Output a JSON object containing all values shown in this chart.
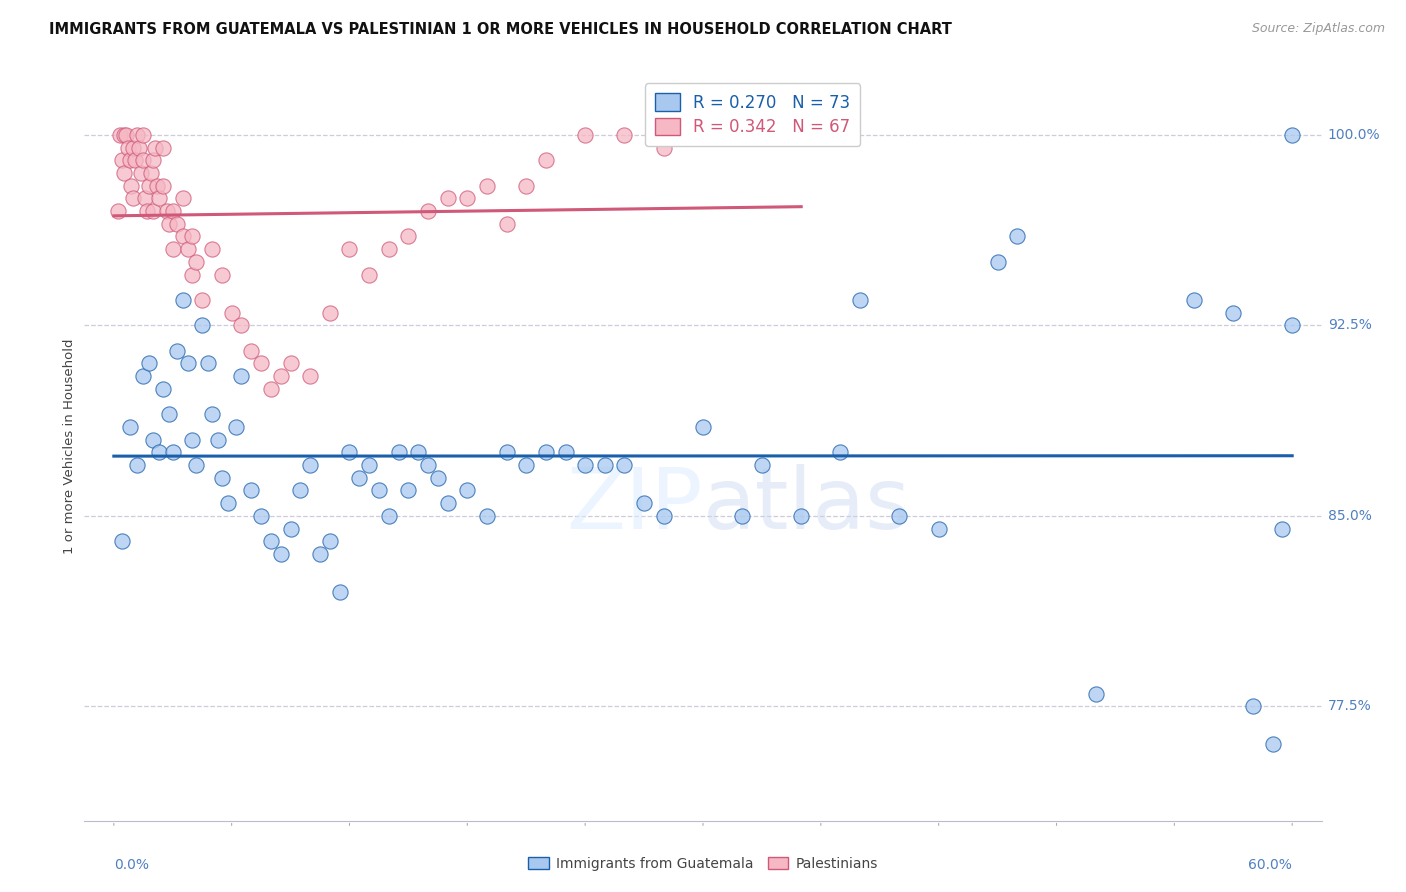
{
  "title": "IMMIGRANTS FROM GUATEMALA VS PALESTINIAN 1 OR MORE VEHICLES IN HOUSEHOLD CORRELATION CHART",
  "source": "Source: ZipAtlas.com",
  "ylabel": "1 or more Vehicles in Household",
  "legend_blue_R": "0.270",
  "legend_blue_N": "73",
  "legend_pink_R": "0.342",
  "legend_pink_N": "67",
  "blue_color": "#a8c8f0",
  "pink_color": "#f5b8c4",
  "blue_line_color": "#1a5faa",
  "pink_line_color": "#d05878",
  "axis_label_color": "#5080c0",
  "grid_color": "#ccccdd",
  "xlim": [
    0.0,
    60.0
  ],
  "ylim": [
    73.0,
    102.5
  ],
  "ytick_positions": [
    77.5,
    85.0,
    92.5,
    100.0
  ],
  "ytick_labels": [
    "77.5%",
    "85.0%",
    "92.5%",
    "100.0%"
  ],
  "blue_scatter_x": [
    0.4,
    0.8,
    1.2,
    1.5,
    1.8,
    2.0,
    2.3,
    2.5,
    2.8,
    3.0,
    3.2,
    3.5,
    3.8,
    4.0,
    4.2,
    4.5,
    4.8,
    5.0,
    5.3,
    5.5,
    5.8,
    6.2,
    6.5,
    7.0,
    7.5,
    8.0,
    8.5,
    9.0,
    9.5,
    10.0,
    10.5,
    11.0,
    11.5,
    12.0,
    12.5,
    13.0,
    13.5,
    14.0,
    14.5,
    15.0,
    15.5,
    16.0,
    16.5,
    17.0,
    18.0,
    19.0,
    20.0,
    21.0,
    22.0,
    23.0,
    24.0,
    25.0,
    26.0,
    27.0,
    28.0,
    30.0,
    32.0,
    33.0,
    35.0,
    37.0,
    38.0,
    40.0,
    42.0,
    45.0,
    46.0,
    50.0,
    55.0,
    57.0,
    58.0,
    59.0,
    59.5,
    60.0,
    60.0
  ],
  "blue_scatter_y": [
    84.0,
    88.5,
    87.0,
    90.5,
    91.0,
    88.0,
    87.5,
    90.0,
    89.0,
    87.5,
    91.5,
    93.5,
    91.0,
    88.0,
    87.0,
    92.5,
    91.0,
    89.0,
    88.0,
    86.5,
    85.5,
    88.5,
    90.5,
    86.0,
    85.0,
    84.0,
    83.5,
    84.5,
    86.0,
    87.0,
    83.5,
    84.0,
    82.0,
    87.5,
    86.5,
    87.0,
    86.0,
    85.0,
    87.5,
    86.0,
    87.5,
    87.0,
    86.5,
    85.5,
    86.0,
    85.0,
    87.5,
    87.0,
    87.5,
    87.5,
    87.0,
    87.0,
    87.0,
    85.5,
    85.0,
    88.5,
    85.0,
    87.0,
    85.0,
    87.5,
    93.5,
    85.0,
    84.5,
    95.0,
    96.0,
    78.0,
    93.5,
    93.0,
    77.5,
    76.0,
    84.5,
    92.5,
    100.0
  ],
  "pink_scatter_x": [
    0.2,
    0.3,
    0.4,
    0.5,
    0.5,
    0.6,
    0.7,
    0.8,
    0.9,
    1.0,
    1.0,
    1.1,
    1.2,
    1.3,
    1.4,
    1.5,
    1.5,
    1.6,
    1.7,
    1.8,
    1.9,
    2.0,
    2.0,
    2.1,
    2.2,
    2.3,
    2.5,
    2.5,
    2.7,
    2.8,
    3.0,
    3.0,
    3.2,
    3.5,
    3.5,
    3.8,
    4.0,
    4.0,
    4.2,
    4.5,
    5.0,
    5.5,
    6.0,
    6.5,
    7.0,
    7.5,
    8.0,
    8.5,
    9.0,
    10.0,
    11.0,
    12.0,
    13.0,
    14.0,
    15.0,
    16.0,
    17.0,
    18.0,
    19.0,
    20.0,
    21.0,
    22.0,
    24.0,
    26.0,
    28.0,
    30.0,
    35.0
  ],
  "pink_scatter_y": [
    97.0,
    100.0,
    99.0,
    98.5,
    100.0,
    100.0,
    99.5,
    99.0,
    98.0,
    99.5,
    97.5,
    99.0,
    100.0,
    99.5,
    98.5,
    100.0,
    99.0,
    97.5,
    97.0,
    98.0,
    98.5,
    97.0,
    99.0,
    99.5,
    98.0,
    97.5,
    99.5,
    98.0,
    97.0,
    96.5,
    97.0,
    95.5,
    96.5,
    97.5,
    96.0,
    95.5,
    96.0,
    94.5,
    95.0,
    93.5,
    95.5,
    94.5,
    93.0,
    92.5,
    91.5,
    91.0,
    90.0,
    90.5,
    91.0,
    90.5,
    93.0,
    95.5,
    94.5,
    95.5,
    96.0,
    97.0,
    97.5,
    97.5,
    98.0,
    96.5,
    98.0,
    99.0,
    100.0,
    100.0,
    99.5,
    100.0,
    100.0
  ],
  "background_color": "#ffffff",
  "title_fontsize": 10.5,
  "source_fontsize": 9,
  "axis_fontsize": 10,
  "legend_fontsize": 12
}
